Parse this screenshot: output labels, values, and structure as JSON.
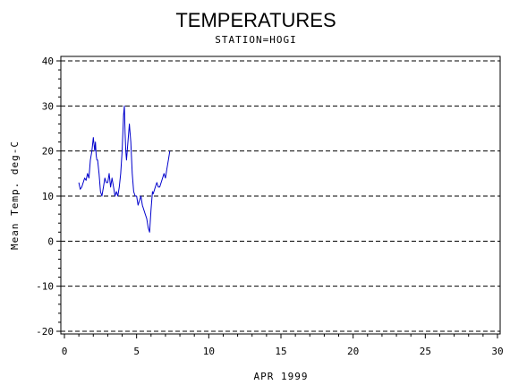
{
  "chart_data": {
    "type": "line",
    "title": "TEMPERATURES",
    "subtitle": "STATION=HOGI",
    "xlabel": "APR 1999",
    "ylabel": "Mean Temp. deg-C",
    "xlim": [
      0,
      30
    ],
    "ylim": [
      -20,
      40
    ],
    "xticks": [
      0,
      5,
      10,
      15,
      20,
      25,
      30
    ],
    "yticks": [
      -20,
      -10,
      0,
      10,
      20,
      30,
      40
    ],
    "grid": "horizontal dashed",
    "series_color": "#0000cc",
    "series": [
      {
        "x": [
          1.0,
          1.1,
          1.2,
          1.3,
          1.4,
          1.5,
          1.6,
          1.7,
          1.75,
          1.8,
          1.9,
          2.0,
          2.1,
          2.15,
          2.2,
          2.25,
          2.3,
          2.4,
          2.5,
          2.6,
          2.7,
          2.8,
          2.9,
          3.0,
          3.1,
          3.2,
          3.3,
          3.4,
          3.5,
          3.6,
          3.7,
          3.8,
          3.9,
          4.0,
          4.1,
          4.15,
          4.2,
          4.25,
          4.3,
          4.4,
          4.5,
          4.6,
          4.7,
          4.8,
          4.9,
          5.0,
          5.1,
          5.2,
          5.3,
          5.4,
          5.5,
          5.6,
          5.7,
          5.8,
          5.9,
          6.0,
          6.1,
          6.15,
          6.2,
          6.3,
          6.4,
          6.5,
          6.6,
          6.7,
          6.8,
          6.9,
          7.0,
          7.1,
          7.2,
          7.3
        ],
        "y": [
          13,
          11.5,
          12,
          13,
          14,
          13.5,
          15,
          14,
          16,
          18,
          20,
          23,
          20,
          22,
          19,
          18,
          18,
          15,
          11,
          10,
          12,
          14,
          13,
          13,
          15,
          12,
          14,
          12,
          10,
          11,
          10,
          12,
          15,
          20,
          28,
          30,
          24,
          20,
          18,
          22,
          26,
          22,
          15,
          11,
          10,
          10,
          8,
          9,
          10,
          8,
          7,
          6,
          5,
          3,
          2,
          7,
          11,
          10.5,
          11,
          12,
          13,
          12,
          12,
          13,
          14,
          15,
          14,
          16,
          18,
          20
        ]
      }
    ]
  }
}
